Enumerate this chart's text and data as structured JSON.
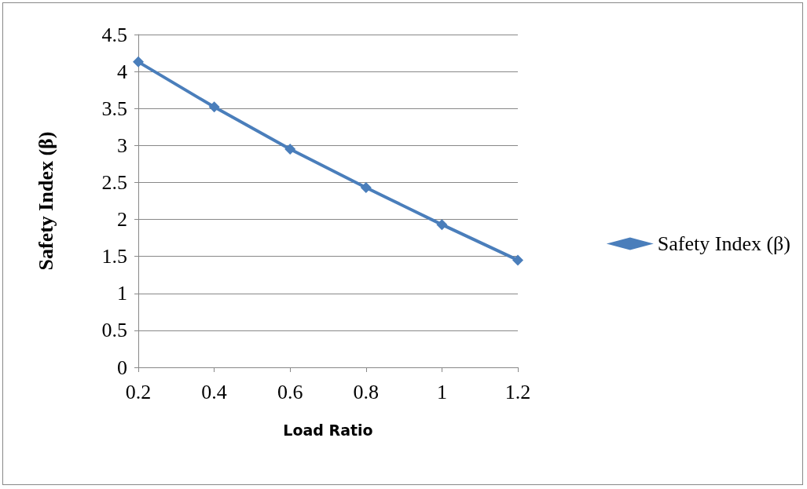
{
  "chart_data": {
    "type": "line",
    "xlabel": "Load Ratio",
    "ylabel": "Safety Index (β)",
    "categories": [
      "0.2",
      "0.4",
      "0.6",
      "0.8",
      "1",
      "1.2"
    ],
    "series": [
      {
        "name": "Safety Index (β)",
        "color": "#4a7ebb",
        "values": [
          4.13,
          3.52,
          2.95,
          2.43,
          1.93,
          1.45
        ]
      }
    ],
    "ylim": [
      0,
      4.5
    ],
    "yticks": [
      0,
      0.5,
      1,
      1.5,
      2,
      2.5,
      3,
      3.5,
      4,
      4.5
    ],
    "grid": "y",
    "legend": "right",
    "marker": "diamond"
  }
}
